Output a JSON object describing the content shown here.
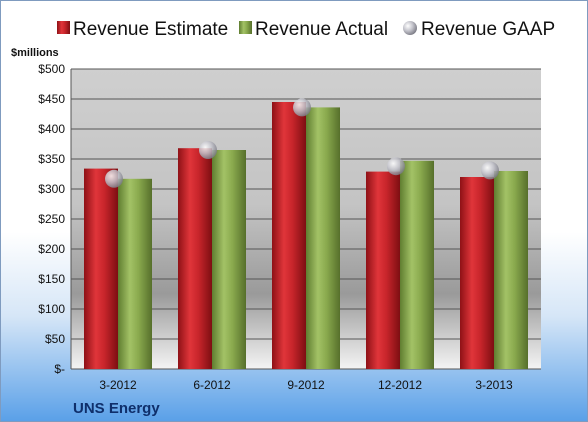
{
  "chart_data": {
    "type": "bar",
    "ylabel": "$millions",
    "categories": [
      "3-2012",
      "6-2012",
      "9-2012",
      "12-2012",
      "3-2013"
    ],
    "series": [
      {
        "name": "Revenue Estimate",
        "kind": "bar",
        "color": "#c8252b",
        "values": [
          334,
          368,
          445,
          329,
          320
        ]
      },
      {
        "name": "Revenue Actual",
        "kind": "bar",
        "color": "#8aaa4e",
        "values": [
          317,
          365,
          436,
          347,
          330
        ]
      },
      {
        "name": "Revenue GAAP",
        "kind": "marker",
        "color": "#b8b8c0",
        "values": [
          317,
          365,
          436,
          338,
          331
        ]
      }
    ],
    "ylim": [
      0,
      500
    ],
    "yticks": [
      0,
      50,
      100,
      150,
      200,
      250,
      300,
      350,
      400,
      450,
      500
    ],
    "ytick_labels": [
      "$-",
      "$50",
      "$100",
      "$150",
      "$200",
      "$250",
      "$300",
      "$350",
      "$400",
      "$450",
      "$500"
    ],
    "grid": true,
    "legend_position": "top"
  },
  "footer": {
    "company": "UNS Energy"
  }
}
